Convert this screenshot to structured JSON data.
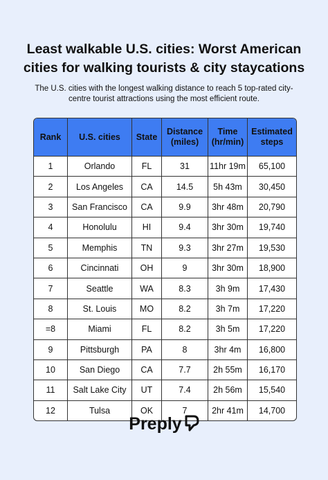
{
  "header": {
    "title": "Least walkable U.S. cities: Worst American cities for walking tourists & city staycations",
    "subtitle": "The U.S. cities with the longest walking distance to reach 5 top-rated city-centre tourist attractions using the most efficient route."
  },
  "table": {
    "columns": [
      "Rank",
      "U.S. cities",
      "State",
      "Distance (miles)",
      "Time (hr/min)",
      "Estimated steps"
    ],
    "rows": [
      [
        "1",
        "Orlando",
        "FL",
        "31",
        "11hr 19m",
        "65,100"
      ],
      [
        "2",
        "Los Angeles",
        "CA",
        "14.5",
        "5h 43m",
        "30,450"
      ],
      [
        "3",
        "San Francisco",
        "CA",
        "9.9",
        "3hr 48m",
        "20,790"
      ],
      [
        "4",
        "Honolulu",
        "HI",
        "9.4",
        "3hr 30m",
        "19,740"
      ],
      [
        "5",
        "Memphis",
        "TN",
        "9.3",
        "3hr 27m",
        "19,530"
      ],
      [
        "6",
        "Cincinnati",
        "OH",
        "9",
        "3hr 30m",
        "18,900"
      ],
      [
        "7",
        "Seattle",
        "WA",
        "8.3",
        "3h 9m",
        "17,430"
      ],
      [
        "8",
        "St. Louis",
        "MO",
        "8.2",
        "3h 7m",
        "17,220"
      ],
      [
        "=8",
        "Miami",
        "FL",
        "8.2",
        "3h 5m",
        "17,220"
      ],
      [
        "9",
        "Pittsburgh",
        "PA",
        "8",
        "3hr 4m",
        "16,800"
      ],
      [
        "10",
        "San Diego",
        "CA",
        "7.7",
        "2h 55m",
        "16,170"
      ],
      [
        "11",
        "Salt Lake City",
        "UT",
        "7.4",
        "2h 56m",
        "15,540"
      ],
      [
        "12",
        "Tulsa",
        "OK",
        "7",
        "2hr 41m",
        "14,700"
      ]
    ]
  },
  "footer": {
    "brand": "Preply"
  }
}
